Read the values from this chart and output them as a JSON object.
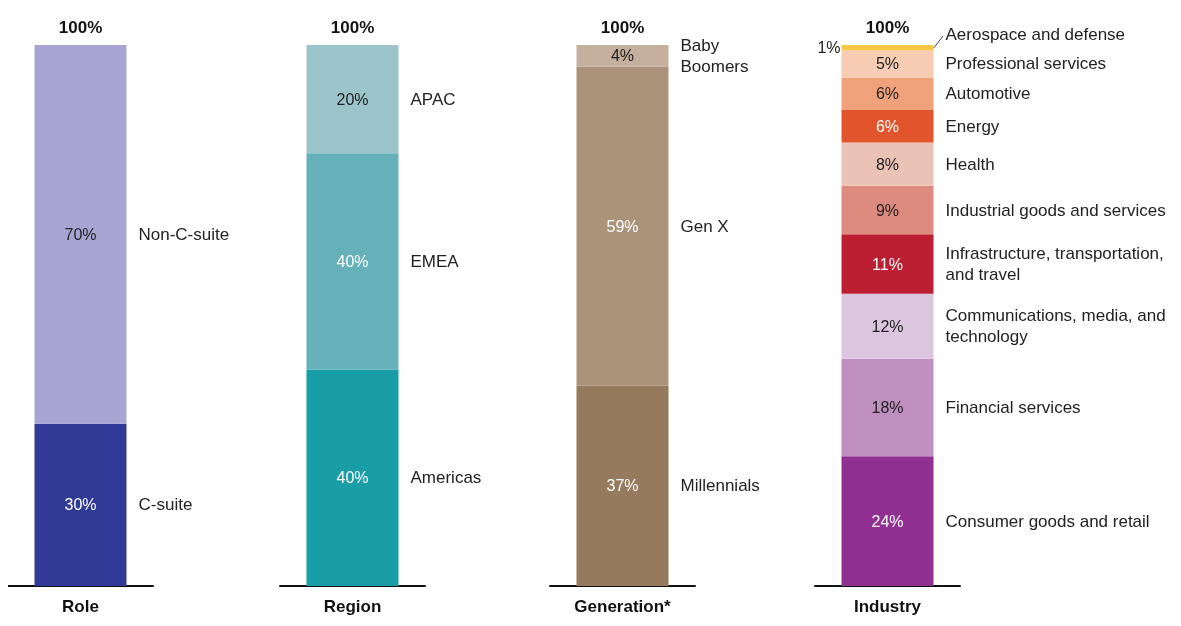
{
  "chart_data": [
    {
      "type": "bar",
      "stacked": true,
      "categories": [
        "Role"
      ],
      "ylim": [
        0,
        100
      ],
      "tick_labels": "x",
      "totals": [
        "100%"
      ],
      "series": [
        {
          "name": "C-suite",
          "color": "#313a96",
          "values": [
            30
          ],
          "value_labels": [
            "30%"
          ]
        },
        {
          "name": "Non-C-suite",
          "color": "#a8a5d3",
          "values": [
            70
          ],
          "value_labels": [
            "70%"
          ]
        }
      ]
    },
    {
      "type": "bar",
      "stacked": true,
      "categories": [
        "Region"
      ],
      "ylim": [
        0,
        100
      ],
      "tick_labels": "x",
      "totals": [
        "100%"
      ],
      "series": [
        {
          "name": "Americas",
          "color": "#199ea8",
          "values": [
            40
          ],
          "value_labels": [
            "40%"
          ]
        },
        {
          "name": "EMEA",
          "color": "#66b0b9",
          "values": [
            40
          ],
          "value_labels": [
            "40%"
          ]
        },
        {
          "name": "APAC",
          "color": "#9cc5cb",
          "values": [
            20
          ],
          "value_labels": [
            "20%"
          ]
        }
      ]
    },
    {
      "type": "bar",
      "stacked": true,
      "categories": [
        "Generation*"
      ],
      "ylim": [
        0,
        100
      ],
      "tick_labels": "x",
      "totals": [
        "100%"
      ],
      "series": [
        {
          "name": "Millennials",
          "color": "#957a5d",
          "values": [
            37
          ],
          "value_labels": [
            "37%"
          ]
        },
        {
          "name": "Gen X",
          "color": "#ab937a",
          "values": [
            59
          ],
          "value_labels": [
            "59%"
          ]
        },
        {
          "name": "Baby Boomers",
          "color": "#c4b09c",
          "values": [
            4
          ],
          "value_labels": [
            "4%"
          ]
        }
      ]
    },
    {
      "type": "bar",
      "stacked": true,
      "categories": [
        "Industry"
      ],
      "ylim": [
        0,
        100
      ],
      "tick_labels": "x",
      "totals": [
        "100%"
      ],
      "series": [
        {
          "name": "Consumer goods and retail",
          "color": "#912f92",
          "values": [
            24
          ],
          "value_labels": [
            "24%"
          ]
        },
        {
          "name": "Financial services",
          "color": "#be8fbf",
          "values": [
            18
          ],
          "value_labels": [
            "18%"
          ]
        },
        {
          "name": "Communications, media, and technology",
          "color": "#dcc5df",
          "values": [
            12
          ],
          "value_labels": [
            "12%"
          ]
        },
        {
          "name": "Infrastructure, transportation, and travel",
          "color": "#bd1f32",
          "values": [
            11
          ],
          "value_labels": [
            "11%"
          ]
        },
        {
          "name": "Industrial goods and services",
          "color": "#dd8a7f",
          "values": [
            9
          ],
          "value_labels": [
            "9%"
          ]
        },
        {
          "name": "Health",
          "color": "#eac3b6",
          "values": [
            8
          ],
          "value_labels": [
            "8%"
          ]
        },
        {
          "name": "Energy",
          "color": "#e2542b",
          "values": [
            6
          ],
          "value_labels": [
            "6%"
          ]
        },
        {
          "name": "Automotive",
          "color": "#f0a37b",
          "values": [
            6
          ],
          "value_labels": [
            "6%"
          ]
        },
        {
          "name": "Professional services",
          "color": "#f6cdb2",
          "values": [
            5
          ],
          "value_labels": [
            "5%"
          ]
        },
        {
          "name": "Aerospace and defense",
          "color": "#f6c644",
          "values": [
            1
          ],
          "value_labels": [
            "1%"
          ]
        }
      ]
    }
  ]
}
